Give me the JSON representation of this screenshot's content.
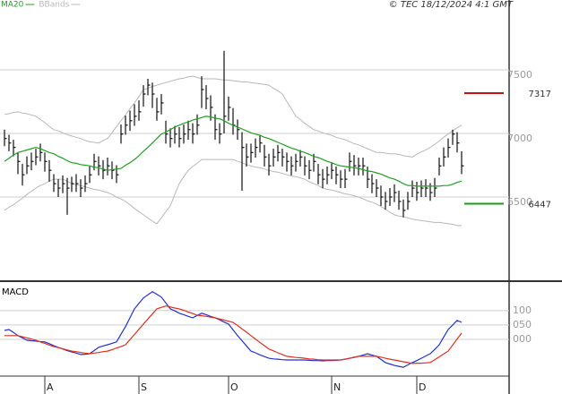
{
  "chart_data": [
    {
      "type": "ohlc",
      "credit": "© TEC 18/12/2024 4:1 GMT",
      "ylim": [
        5845,
        7965
      ],
      "yticks": [
        6500,
        7000,
        7500
      ],
      "grid": true,
      "bars": {
        "color": "#111111",
        "high": [
          7030,
          6990,
          6950,
          6850,
          6760,
          6820,
          6850,
          6880,
          6920,
          6850,
          6790,
          6680,
          6640,
          6670,
          6650,
          6660,
          6680,
          6640,
          6670,
          6740,
          6840,
          6820,
          6790,
          6810,
          6780,
          6750,
          7070,
          7140,
          7180,
          7230,
          7260,
          7380,
          7430,
          7400,
          7280,
          7310,
          7100,
          7040,
          7060,
          7050,
          7070,
          7100,
          7080,
          7150,
          7450,
          7380,
          7300,
          7150,
          7080,
          7650,
          7290,
          7200,
          7110,
          7010,
          6920,
          6920,
          6960,
          6990,
          6910,
          6840,
          6880,
          6910,
          6880,
          6850,
          6820,
          6840,
          6870,
          6820,
          6790,
          6840,
          6760,
          6720,
          6740,
          6770,
          6740,
          6710,
          6720,
          6850,
          6830,
          6810,
          6810,
          6740,
          6680,
          6640,
          6590,
          6540,
          6570,
          6600,
          6550,
          6480,
          6540,
          6630,
          6620,
          6630,
          6640,
          6610,
          6650,
          6810,
          6890,
          6960,
          7030,
          7010,
          6860
        ],
        "low": [
          6900,
          6860,
          6820,
          6680,
          6590,
          6680,
          6710,
          6750,
          6780,
          6700,
          6620,
          6540,
          6500,
          6530,
          6360,
          6540,
          6540,
          6500,
          6540,
          6610,
          6710,
          6670,
          6640,
          6670,
          6640,
          6610,
          6920,
          6990,
          7020,
          7060,
          7100,
          7210,
          7300,
          7200,
          7100,
          7150,
          6920,
          6890,
          6920,
          6890,
          6920,
          6950,
          6920,
          6990,
          7200,
          7190,
          7100,
          6950,
          6920,
          7000,
          7100,
          6990,
          6950,
          6550,
          6740,
          6770,
          6810,
          6850,
          6740,
          6670,
          6740,
          6780,
          6740,
          6700,
          6670,
          6700,
          6740,
          6670,
          6640,
          6700,
          6600,
          6570,
          6600,
          6640,
          6600,
          6570,
          6570,
          6700,
          6670,
          6670,
          6670,
          6570,
          6530,
          6500,
          6430,
          6400,
          6430,
          6460,
          6400,
          6340,
          6400,
          6500,
          6470,
          6500,
          6500,
          6470,
          6500,
          6670,
          6740,
          6810,
          6910,
          6850,
          6680
        ],
        "close": [
          6960,
          6925,
          6890,
          6780,
          6675,
          6745,
          6780,
          6815,
          6850,
          6780,
          6710,
          6605,
          6570,
          6605,
          6570,
          6605,
          6605,
          6570,
          6605,
          6675,
          6780,
          6745,
          6710,
          6745,
          6710,
          6675,
          6995,
          7065,
          7100,
          7135,
          7170,
          7310,
          7380,
          7310,
          7170,
          7240,
          6995,
          6960,
          6995,
          6960,
          6995,
          7030,
          6995,
          7065,
          7345,
          7275,
          7205,
          7030,
          6995,
          7135,
          7205,
          7065,
          7030,
          6890,
          6815,
          6850,
          6890,
          6925,
          6815,
          6745,
          6815,
          6850,
          6815,
          6780,
          6745,
          6780,
          6815,
          6745,
          6710,
          6780,
          6675,
          6640,
          6675,
          6710,
          6675,
          6640,
          6640,
          6780,
          6745,
          6745,
          6745,
          6640,
          6605,
          6570,
          6500,
          6465,
          6500,
          6535,
          6465,
          6395,
          6465,
          6570,
          6535,
          6570,
          6570,
          6535,
          6570,
          6745,
          6815,
          6890,
          6995,
          6925,
          6745
        ]
      },
      "series": [
        {
          "name": "MA20",
          "color": "#1fa01f",
          "values": [
            6780,
            6805,
            6830,
            6850,
            6860,
            6870,
            6880,
            6890,
            6880,
            6865,
            6850,
            6840,
            6820,
            6805,
            6785,
            6770,
            6765,
            6755,
            6750,
            6745,
            6735,
            6730,
            6720,
            6710,
            6715,
            6720,
            6725,
            6750,
            6770,
            6795,
            6825,
            6860,
            6890,
            6925,
            6960,
            6995,
            7010,
            7030,
            7050,
            7065,
            7080,
            7090,
            7105,
            7115,
            7125,
            7135,
            7130,
            7120,
            7115,
            7100,
            7080,
            7065,
            7050,
            7035,
            7020,
            7005,
            6995,
            6985,
            6970,
            6960,
            6945,
            6930,
            6915,
            6900,
            6885,
            6875,
            6860,
            6850,
            6835,
            6820,
            6810,
            6795,
            6780,
            6770,
            6755,
            6745,
            6740,
            6735,
            6730,
            6725,
            6715,
            6705,
            6700,
            6690,
            6680,
            6665,
            6650,
            6640,
            6625,
            6605,
            6590,
            6590,
            6585,
            6585,
            6585,
            6585,
            6585,
            6585,
            6590,
            6590,
            6600,
            6615,
            6625
          ]
        }
      ],
      "bands": {
        "name": "BBands",
        "color": "#b8b8b8",
        "upper": [
          7150,
          7155,
          7165,
          7170,
          7160,
          7155,
          7145,
          7135,
          7110,
          7085,
          7055,
          7030,
          7020,
          7005,
          6990,
          6980,
          6970,
          6960,
          6945,
          6935,
          6930,
          6925,
          6945,
          6960,
          7005,
          7055,
          7100,
          7145,
          7195,
          7240,
          7290,
          7345,
          7355,
          7370,
          7380,
          7390,
          7400,
          7410,
          7420,
          7430,
          7435,
          7445,
          7450,
          7440,
          7430,
          7430,
          7430,
          7430,
          7425,
          7420,
          7420,
          7415,
          7410,
          7405,
          7405,
          7400,
          7395,
          7390,
          7385,
          7380,
          7355,
          7335,
          7310,
          7250,
          7195,
          7135,
          7110,
          7080,
          7055,
          7030,
          7020,
          7005,
          6995,
          6985,
          6970,
          6960,
          6950,
          6935,
          6920,
          6910,
          6895,
          6880,
          6865,
          6850,
          6850,
          6845,
          6840,
          6840,
          6835,
          6825,
          6820,
          6815,
          6835,
          6855,
          6870,
          6890,
          6915,
          6940,
          6970,
          6995,
          7020,
          7045,
          7065
        ],
        "lower": [
          6395,
          6420,
          6440,
          6465,
          6490,
          6520,
          6545,
          6570,
          6590,
          6605,
          6625,
          6640,
          6640,
          6640,
          6625,
          6605,
          6595,
          6590,
          6580,
          6570,
          6560,
          6555,
          6545,
          6535,
          6520,
          6500,
          6485,
          6465,
          6440,
          6410,
          6385,
          6360,
          6335,
          6310,
          6290,
          6335,
          6385,
          6430,
          6520,
          6605,
          6660,
          6710,
          6740,
          6765,
          6795,
          6795,
          6795,
          6795,
          6795,
          6795,
          6795,
          6795,
          6780,
          6770,
          6755,
          6745,
          6735,
          6730,
          6720,
          6710,
          6700,
          6695,
          6685,
          6675,
          6665,
          6660,
          6650,
          6640,
          6620,
          6605,
          6590,
          6570,
          6560,
          6555,
          6545,
          6535,
          6525,
          6520,
          6510,
          6500,
          6485,
          6470,
          6460,
          6445,
          6425,
          6405,
          6380,
          6360,
          6350,
          6345,
          6335,
          6325,
          6320,
          6315,
          6310,
          6305,
          6300,
          6300,
          6295,
          6290,
          6285,
          6275,
          6275
        ]
      },
      "levels": [
        {
          "value": 7317,
          "color": "#d01010"
        },
        {
          "value": 6447,
          "color": "#1a9a1a"
        }
      ]
    },
    {
      "type": "line",
      "title": "MACD",
      "categories": [
        null,
        null,
        null,
        null,
        null,
        null,
        null,
        null,
        null,
        "A",
        null,
        null,
        null,
        null,
        null,
        null,
        null,
        null,
        null,
        null,
        null,
        null,
        null,
        null,
        null,
        null,
        null,
        null,
        null,
        null,
        "S",
        null,
        null,
        null,
        null,
        null,
        null,
        null,
        null,
        null,
        null,
        null,
        null,
        null,
        null,
        null,
        null,
        null,
        null,
        null,
        "O",
        null,
        null,
        null,
        null,
        null,
        null,
        null,
        null,
        null,
        null,
        null,
        null,
        null,
        null,
        null,
        null,
        null,
        null,
        null,
        null,
        null,
        null,
        "N",
        null,
        null,
        null,
        null,
        null,
        null,
        null,
        null,
        null,
        null,
        null,
        null,
        null,
        null,
        null,
        null,
        null,
        null,
        "D",
        null,
        null,
        null,
        null,
        null,
        null,
        null,
        null,
        null,
        null
      ],
      "ylim": [
        -128,
        190
      ],
      "yticks": [
        {
          "value": 0,
          "label": "000"
        },
        {
          "value": 50,
          "label": "050"
        },
        100
      ],
      "grid": true,
      "series": [
        {
          "color": "#2030d0",
          "values": [
            31,
            34,
            24,
            13,
            5,
            -3,
            -5,
            -6,
            -8,
            -9,
            -15,
            -22,
            -28,
            -34,
            -39,
            -44,
            -48,
            -53,
            -52,
            -50,
            -39,
            -28,
            -23,
            -19,
            -14,
            -9,
            18,
            44,
            75,
            106,
            125,
            144,
            155,
            166,
            157,
            147,
            127,
            106,
            99,
            91,
            86,
            80,
            75,
            83,
            91,
            86,
            80,
            75,
            68,
            60,
            53,
            33,
            13,
            -5,
            -23,
            -41,
            -47,
            -54,
            -60,
            -66,
            -68,
            -69,
            -71,
            -72,
            -72,
            -72,
            -72,
            -72,
            -73,
            -74,
            -74,
            -75,
            -74,
            -74,
            -73,
            -72,
            -69,
            -66,
            -63,
            -59,
            -55,
            -50,
            -55,
            -59,
            -70,
            -81,
            -86,
            -91,
            -94,
            -97,
            -89,
            -81,
            -74,
            -66,
            -58,
            -50,
            -35,
            -19,
            8,
            34,
            50,
            66,
            59
          ]
        },
        {
          "color": "#e03020",
          "values": [
            13,
            13,
            13,
            13,
            9,
            5,
            1,
            -3,
            -9,
            -14,
            -20,
            -25,
            -29,
            -33,
            -37,
            -41,
            -43,
            -46,
            -48,
            -50,
            -48,
            -46,
            -43,
            -41,
            -36,
            -30,
            -25,
            -19,
            -1,
            17,
            35,
            53,
            71,
            88,
            106,
            111,
            116,
            113,
            109,
            106,
            101,
            95,
            90,
            84,
            82,
            80,
            77,
            75,
            71,
            67,
            63,
            59,
            48,
            36,
            25,
            13,
            1,
            -11,
            -22,
            -34,
            -40,
            -47,
            -53,
            -59,
            -61,
            -63,
            -64,
            -66,
            -68,
            -69,
            -71,
            -72,
            -72,
            -72,
            -72,
            -72,
            -69,
            -66,
            -62,
            -59,
            -59,
            -59,
            -59,
            -59,
            -62,
            -66,
            -69,
            -72,
            -75,
            -78,
            -81,
            -84,
            -83,
            -83,
            -82,
            -81,
            -71,
            -61,
            -51,
            -41,
            -20,
            1,
            22
          ]
        }
      ]
    }
  ]
}
